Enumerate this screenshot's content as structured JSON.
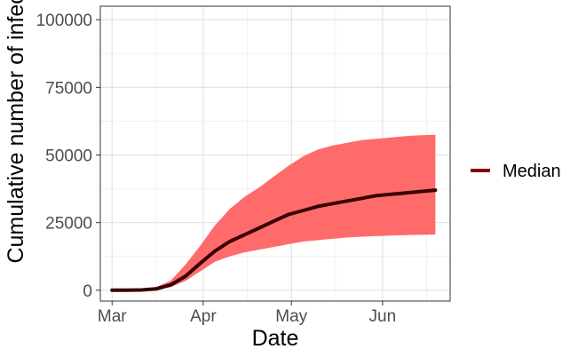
{
  "chart_data": {
    "type": "area",
    "xlabel": "Date",
    "ylabel": "Cumulative number of infected",
    "x_ticks": [
      "Mar",
      "Apr",
      "May",
      "Jun"
    ],
    "y_ticks": [
      "0",
      "25000",
      "50000",
      "75000",
      "100000"
    ],
    "ylim": [
      -4000,
      105000
    ],
    "xlim": [
      "2020-02-26",
      "2020-06-24"
    ],
    "grid": true,
    "legend_position": "right",
    "x": [
      "2020-03-01",
      "2020-03-06",
      "2020-03-11",
      "2020-03-16",
      "2020-03-21",
      "2020-03-26",
      "2020-03-31",
      "2020-04-05",
      "2020-04-10",
      "2020-04-15",
      "2020-04-20",
      "2020-04-25",
      "2020-04-30",
      "2020-05-05",
      "2020-05-10",
      "2020-05-15",
      "2020-05-20",
      "2020-05-25",
      "2020-05-30",
      "2020-06-04",
      "2020-06-09",
      "2020-06-14",
      "2020-06-19"
    ],
    "series": [
      {
        "name": "Median",
        "color": "#8b0000",
        "values": [
          0,
          0,
          100,
          500,
          2000,
          5200,
          10000,
          14500,
          18000,
          20500,
          23000,
          25500,
          28000,
          29500,
          31000,
          32000,
          33000,
          34000,
          35000,
          35500,
          36000,
          36500,
          37000
        ]
      }
    ],
    "band": {
      "color": "#ff6b6b",
      "lower": [
        0,
        0,
        50,
        300,
        1200,
        3500,
        7000,
        10500,
        12500,
        14000,
        15000,
        16000,
        17000,
        18000,
        18500,
        19000,
        19500,
        19800,
        20000,
        20200,
        20400,
        20500,
        20600
      ],
      "upper": [
        0,
        0,
        200,
        1200,
        3600,
        9500,
        16500,
        24000,
        30000,
        34500,
        38000,
        42000,
        46000,
        49500,
        52000,
        53500,
        54500,
        55500,
        56000,
        56500,
        57000,
        57300,
        57500
      ]
    }
  }
}
